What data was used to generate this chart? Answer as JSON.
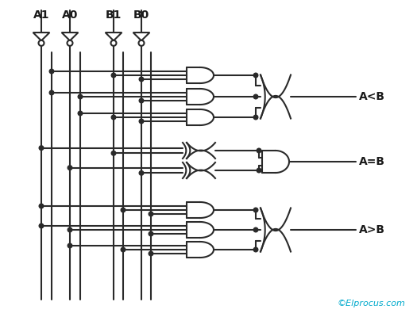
{
  "bg_color": "#ffffff",
  "line_color": "#2a2a2a",
  "text_color": "#1a1a1a",
  "watermark_color": "#00aacc",
  "input_labels": [
    "A1",
    "A0",
    "B1",
    "B0"
  ],
  "output_labels": [
    "A<B",
    "A=B",
    "A>B"
  ],
  "fig_width": 5.25,
  "fig_height": 4.0,
  "dpi": 100,
  "lw": 1.5
}
